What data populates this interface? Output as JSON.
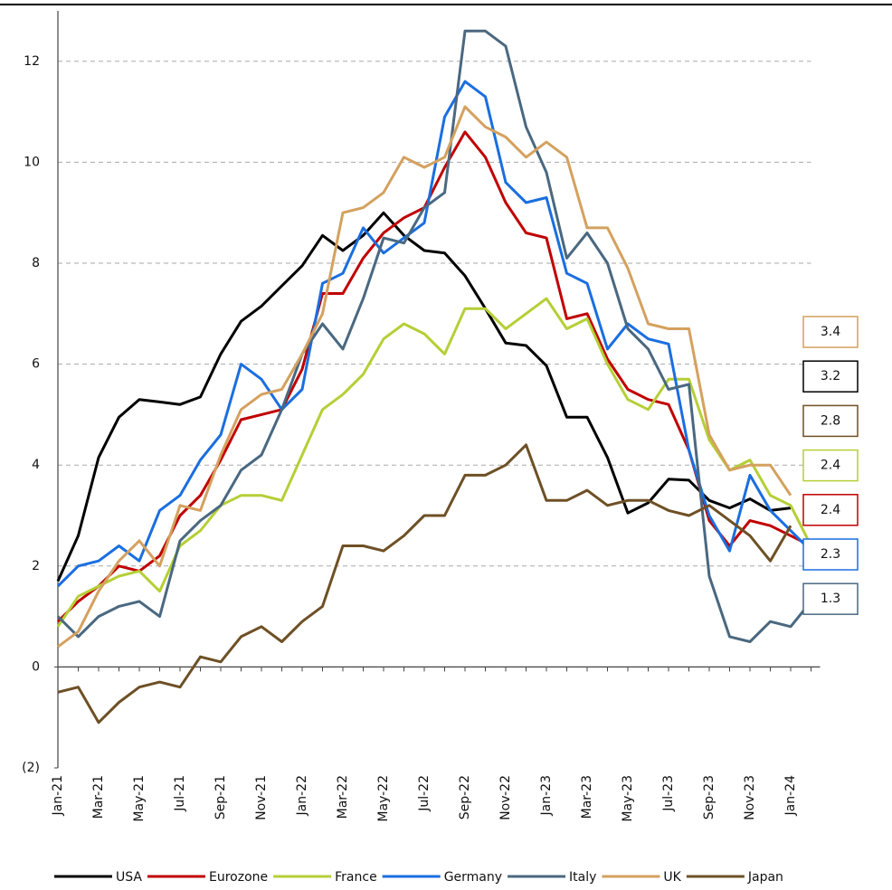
{
  "chart_data": {
    "type": "line",
    "categories": [
      "Jan-21",
      null,
      "Mar-21",
      null,
      "May-21",
      null,
      "Jul-21",
      null,
      "Sep-21",
      null,
      "Nov-21",
      null,
      "Jan-22",
      null,
      "Mar-22",
      null,
      "May-22",
      null,
      "Jul-22",
      null,
      "Sep-22",
      null,
      "Nov-22",
      null,
      "Jan-23",
      null,
      "Mar-23",
      null,
      "May-23",
      null,
      "Jul-23",
      null,
      "Sep-23",
      null,
      "Nov-23",
      null,
      "Jan-24",
      null
    ],
    "series": [
      {
        "name": "USA",
        "color": "#000000",
        "values": [
          1.7,
          2.6,
          4.15,
          4.95,
          5.3,
          5.25,
          5.2,
          5.35,
          6.2,
          6.85,
          7.15,
          7.55,
          7.95,
          8.55,
          8.25,
          8.55,
          9.0,
          8.55,
          8.25,
          8.2,
          7.75,
          7.1,
          6.42,
          6.37,
          5.97,
          4.95,
          4.95,
          4.15,
          3.05,
          3.25,
          3.72,
          3.7,
          3.3,
          3.15,
          3.33,
          3.1,
          3.15,
          null
        ]
      },
      {
        "name": "Eurozone",
        "color": "#c00000",
        "values": [
          0.9,
          1.3,
          1.6,
          2.0,
          1.9,
          2.2,
          3.0,
          3.4,
          4.1,
          4.9,
          5.0,
          5.1,
          5.9,
          7.4,
          7.4,
          8.1,
          8.6,
          8.9,
          9.1,
          9.9,
          10.6,
          10.1,
          9.2,
          8.6,
          8.5,
          6.9,
          7.0,
          6.1,
          5.5,
          5.3,
          5.2,
          4.3,
          2.9,
          2.4,
          2.9,
          2.8,
          2.6,
          2.4
        ]
      },
      {
        "name": "France",
        "color": "#b5cf36",
        "values": [
          0.8,
          1.4,
          1.6,
          1.8,
          1.9,
          1.5,
          2.4,
          2.7,
          3.2,
          3.4,
          3.4,
          3.3,
          4.2,
          5.1,
          5.4,
          5.8,
          6.5,
          6.8,
          6.6,
          6.2,
          7.1,
          7.1,
          6.7,
          7.0,
          7.3,
          6.7,
          6.9,
          6.0,
          5.3,
          5.1,
          5.7,
          5.7,
          4.5,
          3.9,
          4.1,
          3.4,
          3.2,
          2.4
        ]
      },
      {
        "name": "Germany",
        "color": "#1a6ee0",
        "values": [
          1.6,
          2.0,
          2.1,
          2.4,
          2.1,
          3.1,
          3.4,
          4.1,
          4.6,
          6.0,
          5.7,
          5.1,
          5.5,
          7.6,
          7.8,
          8.7,
          8.2,
          8.5,
          8.8,
          10.9,
          11.6,
          11.3,
          9.6,
          9.2,
          9.3,
          7.8,
          7.6,
          6.3,
          6.8,
          6.5,
          6.4,
          4.3,
          3.0,
          2.3,
          3.8,
          3.1,
          2.7,
          2.3
        ]
      },
      {
        "name": "Italy",
        "color": "#4a6880",
        "values": [
          1.0,
          0.6,
          1.0,
          1.2,
          1.3,
          1.0,
          2.5,
          2.9,
          3.2,
          3.9,
          4.2,
          5.1,
          6.2,
          6.8,
          6.3,
          7.3,
          8.5,
          8.4,
          9.1,
          9.4,
          12.6,
          12.6,
          12.3,
          10.7,
          9.8,
          8.1,
          8.6,
          8.0,
          6.7,
          6.3,
          5.5,
          5.6,
          1.8,
          0.6,
          0.5,
          0.9,
          0.8,
          1.3
        ]
      },
      {
        "name": "UK",
        "color": "#d4a15f",
        "values": [
          0.4,
          0.7,
          1.5,
          2.1,
          2.5,
          2.0,
          3.2,
          3.1,
          4.2,
          5.1,
          5.4,
          5.5,
          6.2,
          7.0,
          9.0,
          9.1,
          9.4,
          10.1,
          9.9,
          10.1,
          11.1,
          10.7,
          10.5,
          10.1,
          10.4,
          10.1,
          8.7,
          8.7,
          7.9,
          6.8,
          6.7,
          6.7,
          4.6,
          3.9,
          4.0,
          4.0,
          3.4,
          null
        ]
      },
      {
        "name": "Japan",
        "color": "#6e5025",
        "values": [
          -0.5,
          -0.4,
          -1.1,
          -0.7,
          -0.4,
          -0.3,
          -0.4,
          0.2,
          0.1,
          0.6,
          0.8,
          0.5,
          0.9,
          1.2,
          2.4,
          2.4,
          2.3,
          2.6,
          3.0,
          3.0,
          3.8,
          3.8,
          4.0,
          4.4,
          3.3,
          3.3,
          3.5,
          3.2,
          3.3,
          3.3,
          3.1,
          3.0,
          3.2,
          2.9,
          2.6,
          2.1,
          2.8,
          null
        ]
      }
    ],
    "ylim": [
      -2,
      13
    ],
    "yticks": [
      {
        "value": -2,
        "label": "(2)"
      },
      0,
      2,
      4,
      6,
      8,
      10,
      12
    ],
    "grid": true,
    "legend": "bottom",
    "end_labels": [
      {
        "value": 3.4,
        "color": "#d4a15f"
      },
      {
        "value": 3.2,
        "color": "#000000"
      },
      {
        "value": 2.8,
        "color": "#6e5025"
      },
      {
        "value": 2.4,
        "color": "#b5cf36"
      },
      {
        "value": 2.4,
        "color": "#c00000"
      },
      {
        "value": 2.3,
        "color": "#1a6ee0"
      },
      {
        "value": 1.3,
        "color": "#4a6880"
      }
    ]
  }
}
